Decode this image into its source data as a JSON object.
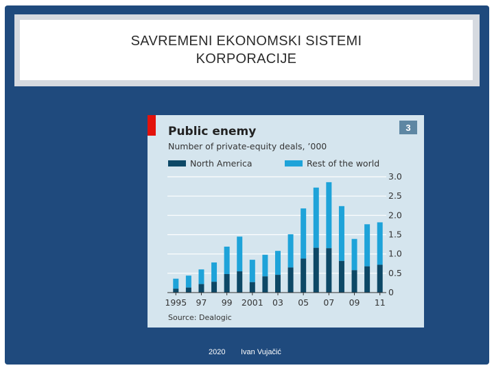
{
  "slide": {
    "title_line1": "SAVREMENI EKONOMSKI SISTEMI",
    "title_line2": "KORPORACIJE",
    "footer_year": "2020",
    "footer_author": "Ivan Vujačić"
  },
  "figure": {
    "badge": "3",
    "source": "Source: Dealogic"
  },
  "colors": {
    "north_america": "#0d4866",
    "rest_of_world": "#1ea3d9",
    "accent_red": "#e3120b",
    "panel_bg": "#d5e5ee"
  },
  "chart_data": {
    "type": "bar",
    "stacked": true,
    "title": "Public enemy",
    "subtitle": "Number of private-equity deals, ’000",
    "x": [
      1995,
      1996,
      1997,
      1998,
      1999,
      2000,
      2001,
      2002,
      2003,
      2004,
      2005,
      2006,
      2007,
      2008,
      2009,
      2010,
      2011
    ],
    "x_tick_labels": [
      "1995",
      "97",
      "99",
      "2001",
      "03",
      "05",
      "07",
      "09",
      "11"
    ],
    "x_tick_years": [
      1995,
      1997,
      1999,
      2001,
      2003,
      2005,
      2007,
      2009,
      2011
    ],
    "series": [
      {
        "name": "North America",
        "values": [
          0.1,
          0.13,
          0.22,
          0.28,
          0.48,
          0.55,
          0.27,
          0.42,
          0.46,
          0.65,
          0.88,
          1.16,
          1.15,
          0.82,
          0.58,
          0.68,
          0.72
        ]
      },
      {
        "name": "Rest of the world",
        "values": [
          0.26,
          0.31,
          0.38,
          0.5,
          0.71,
          0.9,
          0.58,
          0.56,
          0.62,
          0.86,
          1.3,
          1.56,
          1.71,
          1.42,
          0.81,
          1.09,
          1.1
        ]
      }
    ],
    "y_axis_side": "right",
    "yticks": [
      "0",
      "0.5",
      "1.0",
      "1.5",
      "2.0",
      "2.5",
      "3.0"
    ],
    "ylim": [
      0,
      3.0
    ],
    "grid": true
  }
}
